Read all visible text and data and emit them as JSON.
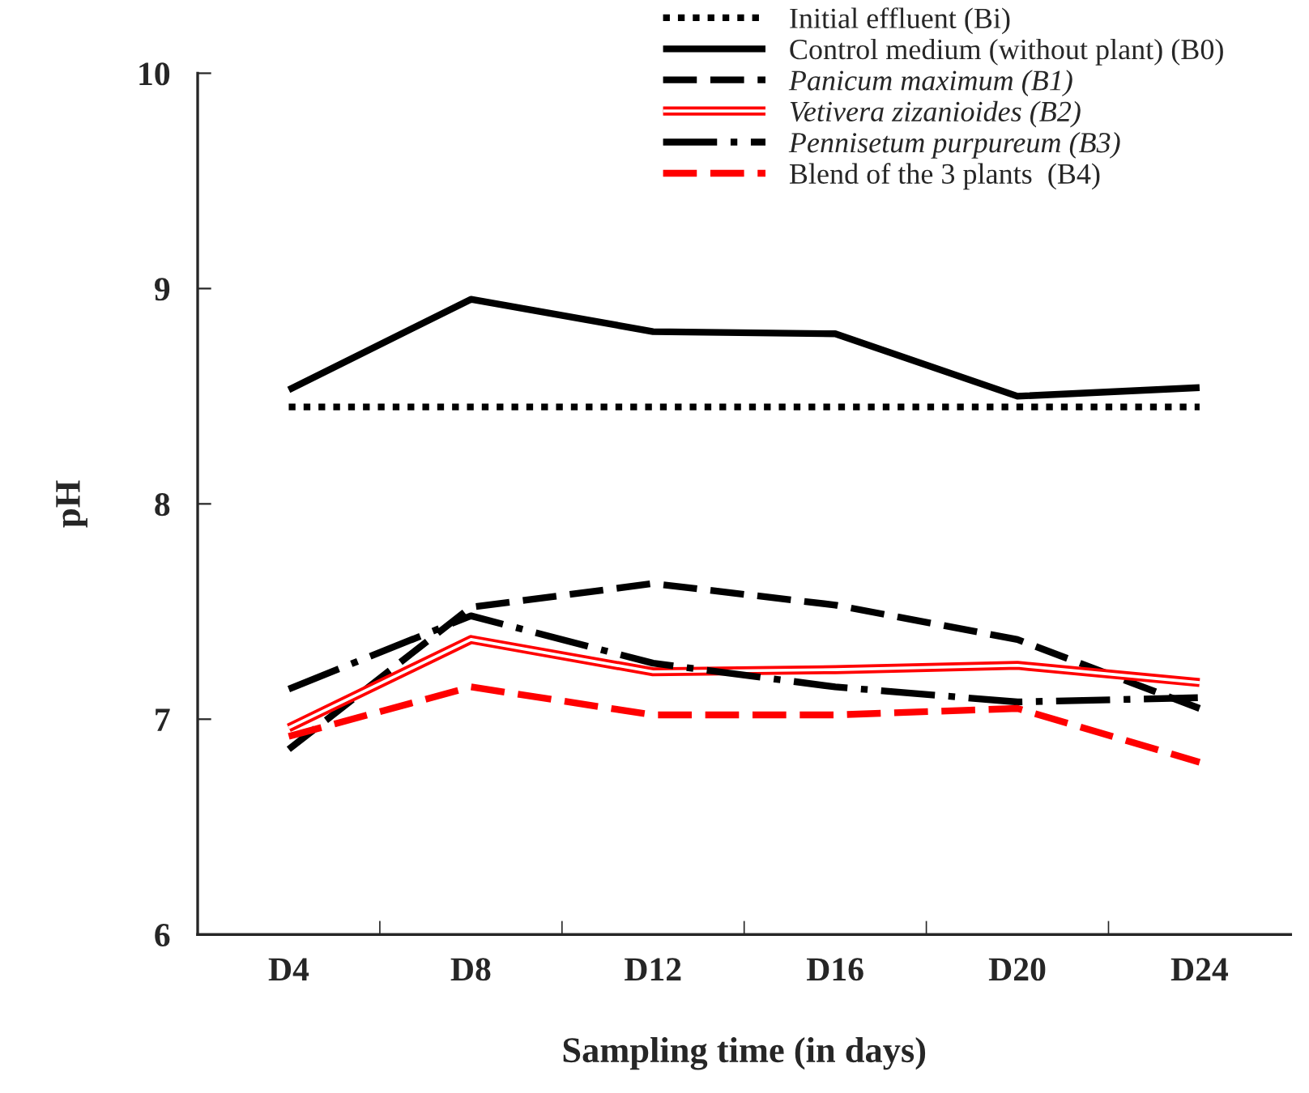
{
  "chart_data": {
    "type": "line",
    "xlabel": "Sampling time (in days)",
    "ylabel": "pH",
    "categories": [
      "D4",
      "D8",
      "D12",
      "D16",
      "D20",
      "D24"
    ],
    "ylim": [
      6,
      10
    ],
    "yticks": [
      6,
      7,
      8,
      9,
      10
    ],
    "grid": false,
    "legend": "top right",
    "marker": "none",
    "series": [
      {
        "name": "Initial effluent (Bi)",
        "color": "#000000",
        "line_style": "dotted",
        "values": [
          8.45,
          8.45,
          8.45,
          8.45,
          8.45,
          8.45
        ]
      },
      {
        "name": "Control medium (without plant) (B0)",
        "color": "#000000",
        "line_style": "solid",
        "values": [
          8.53,
          8.95,
          8.8,
          8.79,
          8.5,
          8.54
        ]
      },
      {
        "name": "Panicum maximum (B1)",
        "color": "#000000",
        "line_style": "dashed",
        "values": [
          6.86,
          7.52,
          7.63,
          7.53,
          7.37,
          7.05
        ]
      },
      {
        "name": "Vetivera zizanioides (B2)",
        "color": "#ff0000",
        "line_style": "solid",
        "values": [
          6.96,
          7.37,
          7.22,
          7.23,
          7.25,
          7.17
        ]
      },
      {
        "name": "Pennisetum purpureum (B3)",
        "color": "#000000",
        "line_style": "dashed",
        "values": [
          7.14,
          7.48,
          7.26,
          7.15,
          7.08,
          7.1
        ]
      },
      {
        "name": "Blend of the 3 plants  (B4)",
        "color": "#ff0000",
        "line_style": "dashed",
        "values": [
          6.92,
          7.15,
          7.02,
          7.02,
          7.05,
          6.8
        ]
      }
    ]
  }
}
